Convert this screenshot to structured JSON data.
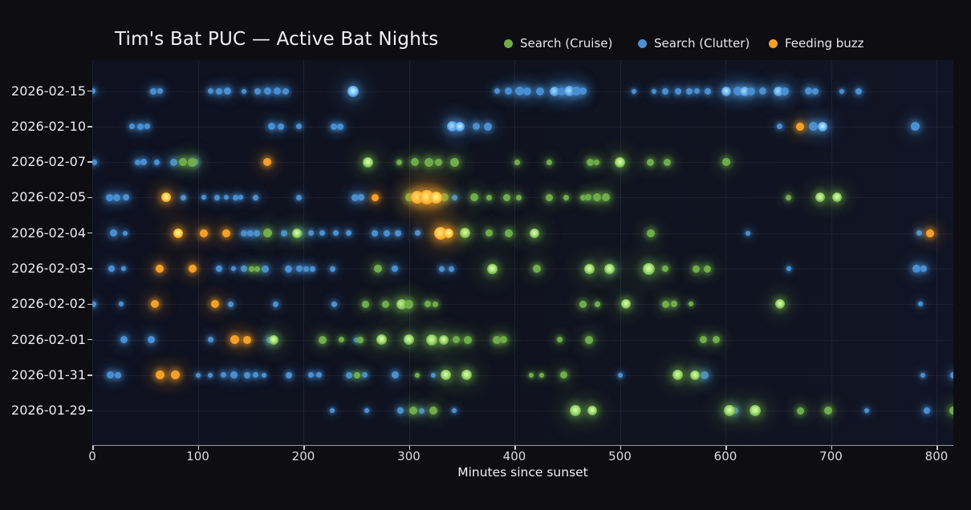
{
  "title": "Tim's Bat PUC — Active Bat Nights",
  "xlabel": "Minutes since sunset",
  "colors": {
    "background": "#0d0d12",
    "plot_background": "#10131f",
    "cruise": "#6fae4b",
    "clutter": "#4a90d2",
    "buzz": "#f5a028",
    "text": "#ececec"
  },
  "chart_data": {
    "type": "scatter",
    "title": "Tim's Bat PUC — Active Bat Nights",
    "xlabel": "Minutes since sunset",
    "ylabel": "",
    "xlim": [
      0,
      816
    ],
    "x_ticks": [
      0,
      100,
      200,
      300,
      400,
      500,
      600,
      700,
      800
    ],
    "grid": true,
    "legend_position": "top",
    "series": [
      {
        "key": "cruise",
        "name": "Search (Cruise)",
        "color": "#6fae4b"
      },
      {
        "key": "clutter",
        "name": "Search (Clutter)",
        "color": "#4a90d2"
      },
      {
        "key": "buzz",
        "name": "Feeding buzz",
        "color": "#f5a028"
      }
    ],
    "rows": [
      {
        "date": "2026-02-15",
        "points": {
          "clutter": [
            [
              0,
              7
            ],
            [
              58,
              8
            ],
            [
              64,
              7
            ],
            [
              112,
              7
            ],
            [
              120,
              8
            ],
            [
              128,
              9
            ],
            [
              144,
              6
            ],
            [
              157,
              8
            ],
            [
              166,
              9
            ],
            [
              175,
              9
            ],
            [
              183,
              8
            ],
            [
              247,
              14
            ],
            [
              384,
              7
            ],
            [
              394,
              9
            ],
            [
              405,
              11
            ],
            [
              412,
              10
            ],
            [
              424,
              10
            ],
            [
              438,
              12
            ],
            [
              445,
              10
            ],
            [
              452,
              13
            ],
            [
              459,
              11
            ],
            [
              465,
              9
            ],
            [
              513,
              6
            ],
            [
              532,
              6
            ],
            [
              543,
              8
            ],
            [
              555,
              8
            ],
            [
              566,
              8
            ],
            [
              573,
              7
            ],
            [
              583,
              8
            ],
            [
              601,
              12
            ],
            [
              612,
              11
            ],
            [
              618,
              12
            ],
            [
              624,
              10
            ],
            [
              635,
              9
            ],
            [
              650,
              12
            ],
            [
              656,
              10
            ],
            [
              679,
              9
            ],
            [
              685,
              8
            ],
            [
              710,
              6
            ],
            [
              726,
              8
            ]
          ],
          "cruise": [],
          "buzz": []
        }
      },
      {
        "date": "2026-02-10",
        "points": {
          "clutter": [
            [
              38,
              7
            ],
            [
              46,
              8
            ],
            [
              52,
              7
            ],
            [
              170,
              9
            ],
            [
              179,
              8
            ],
            [
              196,
              7
            ],
            [
              229,
              8
            ],
            [
              235,
              8
            ],
            [
              341,
              13
            ],
            [
              348,
              12
            ],
            [
              364,
              9
            ],
            [
              375,
              10
            ],
            [
              651,
              7
            ],
            [
              683,
              11
            ],
            [
              692,
              12
            ],
            [
              780,
              11
            ]
          ],
          "cruise": [],
          "buzz": [
            [
              671,
              10
            ]
          ]
        }
      },
      {
        "date": "2026-02-07",
        "points": {
          "clutter": [
            [
              2,
              7
            ],
            [
              43,
              7
            ],
            [
              49,
              8
            ],
            [
              61,
              7
            ],
            [
              77,
              9
            ],
            [
              97,
              8
            ]
          ],
          "cruise": [
            [
              86,
              10
            ],
            [
              95,
              11
            ],
            [
              261,
              13
            ],
            [
              291,
              7
            ],
            [
              306,
              10
            ],
            [
              319,
              11
            ],
            [
              328,
              9
            ],
            [
              343,
              11
            ],
            [
              403,
              7
            ],
            [
              433,
              7
            ],
            [
              472,
              9
            ],
            [
              478,
              7
            ],
            [
              500,
              13
            ],
            [
              529,
              9
            ],
            [
              545,
              9
            ],
            [
              601,
              10
            ]
          ],
          "buzz": [
            [
              166,
              10
            ]
          ]
        }
      },
      {
        "date": "2026-02-05",
        "points": {
          "clutter": [
            [
              16,
              9
            ],
            [
              23,
              9
            ],
            [
              32,
              8
            ],
            [
              86,
              7
            ],
            [
              106,
              6
            ],
            [
              118,
              7
            ],
            [
              127,
              6
            ],
            [
              136,
              7
            ],
            [
              141,
              6
            ],
            [
              155,
              7
            ],
            [
              196,
              7
            ],
            [
              249,
              9
            ],
            [
              255,
              8
            ],
            [
              343,
              7
            ]
          ],
          "cruise": [
            [
              300,
              10
            ],
            [
              334,
              10
            ],
            [
              362,
              10
            ],
            [
              376,
              7
            ],
            [
              393,
              9
            ],
            [
              404,
              7
            ],
            [
              433,
              9
            ],
            [
              449,
              7
            ],
            [
              465,
              7
            ],
            [
              470,
              8
            ],
            [
              478,
              10
            ],
            [
              487,
              10
            ],
            [
              660,
              7
            ],
            [
              690,
              12
            ],
            [
              706,
              12
            ]
          ],
          "buzz": [
            [
              70,
              12
            ],
            [
              268,
              9
            ],
            [
              308,
              16
            ],
            [
              317,
              18
            ],
            [
              326,
              15
            ]
          ]
        }
      },
      {
        "date": "2026-02-04",
        "points": {
          "clutter": [
            [
              20,
              9
            ],
            [
              31,
              6
            ],
            [
              144,
              8
            ],
            [
              150,
              8
            ],
            [
              156,
              8
            ],
            [
              182,
              8
            ],
            [
              196,
              8
            ],
            [
              207,
              7
            ],
            [
              218,
              7
            ],
            [
              231,
              7
            ],
            [
              243,
              7
            ],
            [
              268,
              8
            ],
            [
              279,
              8
            ],
            [
              290,
              8
            ],
            [
              308,
              7
            ],
            [
              621,
              6
            ],
            [
              784,
              7
            ]
          ],
          "cruise": [
            [
              166,
              11
            ],
            [
              194,
              12
            ],
            [
              353,
              13
            ],
            [
              376,
              9
            ],
            [
              395,
              10
            ],
            [
              419,
              12
            ],
            [
              529,
              10
            ]
          ],
          "buzz": [
            [
              81,
              12
            ],
            [
              106,
              10
            ],
            [
              127,
              10
            ],
            [
              330,
              16
            ],
            [
              338,
              12
            ],
            [
              794,
              10
            ]
          ]
        }
      },
      {
        "date": "2026-02-03",
        "points": {
          "clutter": [
            [
              18,
              8
            ],
            [
              30,
              6
            ],
            [
              120,
              8
            ],
            [
              134,
              6
            ],
            [
              144,
              8
            ],
            [
              164,
              9
            ],
            [
              186,
              9
            ],
            [
              196,
              8
            ],
            [
              203,
              7
            ],
            [
              209,
              7
            ],
            [
              228,
              7
            ],
            [
              287,
              8
            ],
            [
              331,
              7
            ],
            [
              340,
              7
            ],
            [
              492,
              7
            ],
            [
              660,
              6
            ],
            [
              781,
              10
            ],
            [
              788,
              8
            ]
          ],
          "cruise": [
            [
              151,
              7
            ],
            [
              156,
              7
            ],
            [
              271,
              10
            ],
            [
              379,
              13
            ],
            [
              421,
              10
            ],
            [
              471,
              13
            ],
            [
              490,
              13
            ],
            [
              527,
              15
            ],
            [
              543,
              8
            ],
            [
              572,
              9
            ],
            [
              583,
              9
            ]
          ],
          "buzz": [
            [
              64,
              10
            ],
            [
              95,
              10
            ]
          ]
        }
      },
      {
        "date": "2026-02-02",
        "points": {
          "clutter": [
            [
              1,
              7
            ],
            [
              27,
              6
            ],
            [
              131,
              7
            ],
            [
              174,
              7
            ],
            [
              229,
              7
            ],
            [
              785,
              6
            ]
          ],
          "cruise": [
            [
              259,
              9
            ],
            [
              278,
              9
            ],
            [
              293,
              13
            ],
            [
              300,
              11
            ],
            [
              318,
              8
            ],
            [
              325,
              7
            ],
            [
              465,
              9
            ],
            [
              479,
              7
            ],
            [
              506,
              12
            ],
            [
              543,
              9
            ],
            [
              551,
              8
            ],
            [
              567,
              6
            ],
            [
              652,
              12
            ]
          ],
          "buzz": [
            [
              59,
              10
            ],
            [
              116,
              10
            ]
          ]
        }
      },
      {
        "date": "2026-02-01",
        "points": {
          "clutter": [
            [
              30,
              9
            ],
            [
              56,
              9
            ],
            [
              112,
              7
            ],
            [
              168,
              8
            ],
            [
              250,
              6
            ]
          ],
          "cruise": [
            [
              172,
              12
            ],
            [
              218,
              10
            ],
            [
              236,
              7
            ],
            [
              254,
              8
            ],
            [
              274,
              13
            ],
            [
              300,
              13
            ],
            [
              322,
              14
            ],
            [
              333,
              12
            ],
            [
              345,
              9
            ],
            [
              356,
              10
            ],
            [
              383,
              10
            ],
            [
              390,
              9
            ],
            [
              443,
              7
            ],
            [
              471,
              10
            ],
            [
              579,
              9
            ],
            [
              591,
              9
            ]
          ],
          "buzz": [
            [
              135,
              11
            ],
            [
              147,
              10
            ]
          ]
        }
      },
      {
        "date": "2026-01-31",
        "points": {
          "clutter": [
            [
              17,
              9
            ],
            [
              24,
              8
            ],
            [
              100,
              6
            ],
            [
              112,
              6
            ],
            [
              124,
              7
            ],
            [
              134,
              9
            ],
            [
              147,
              8
            ],
            [
              155,
              7
            ],
            [
              163,
              6
            ],
            [
              186,
              8
            ],
            [
              207,
              7
            ],
            [
              215,
              7
            ],
            [
              243,
              8
            ],
            [
              258,
              7
            ],
            [
              287,
              9
            ],
            [
              323,
              6
            ],
            [
              500,
              6
            ],
            [
              580,
              10
            ],
            [
              787,
              6
            ],
            [
              816,
              8
            ]
          ],
          "cruise": [
            [
              251,
              8
            ],
            [
              308,
              6
            ],
            [
              335,
              13
            ],
            [
              355,
              13
            ],
            [
              416,
              6
            ],
            [
              426,
              6
            ],
            [
              447,
              9
            ],
            [
              555,
              13
            ],
            [
              571,
              12
            ]
          ],
          "buzz": [
            [
              64,
              11
            ],
            [
              79,
              11
            ]
          ]
        }
      },
      {
        "date": "2026-01-29",
        "points": {
          "clutter": [
            [
              227,
              6
            ],
            [
              260,
              6
            ],
            [
              292,
              8
            ],
            [
              312,
              7
            ],
            [
              343,
              6
            ],
            [
              609,
              8
            ],
            [
              734,
              6
            ],
            [
              791,
              8
            ]
          ],
          "cruise": [
            [
              304,
              10
            ],
            [
              323,
              10
            ],
            [
              458,
              14
            ],
            [
              474,
              12
            ],
            [
              604,
              14
            ],
            [
              628,
              14
            ],
            [
              671,
              9
            ],
            [
              697,
              10
            ],
            [
              816,
              10
            ]
          ],
          "buzz": []
        }
      }
    ]
  }
}
